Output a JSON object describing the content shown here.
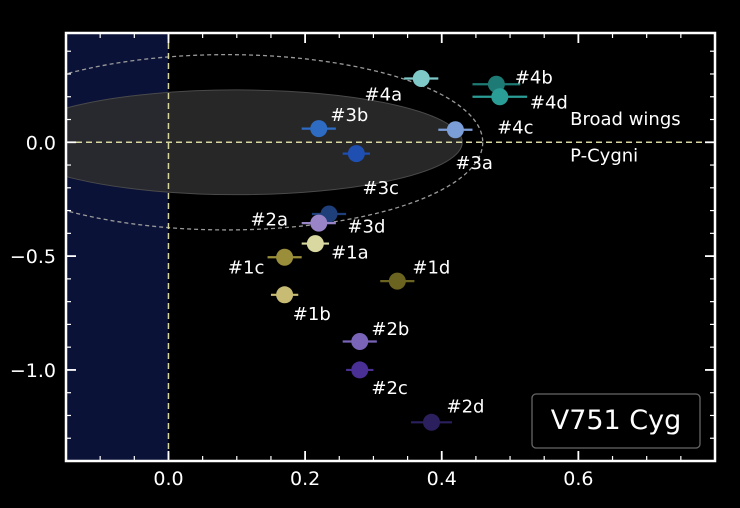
{
  "chart_data": {
    "type": "scatter",
    "title": "V751 Cyg",
    "xlabel": "",
    "ylabel": "",
    "xlim": [
      -0.15,
      0.8
    ],
    "ylim": [
      -1.4,
      0.48
    ],
    "xticks": [
      0.0,
      0.2,
      0.4,
      0.6
    ],
    "yticks": [
      0.0,
      -0.5,
      -1.0
    ],
    "xtick_labels": [
      "0.0",
      "0.2",
      "0.4",
      "0.6"
    ],
    "ytick_labels": [
      "0.0",
      "−0.5",
      "−1.0"
    ],
    "grid": false,
    "background": "#000000",
    "axes_color": "#ffffff",
    "reference_lines": {
      "x": 0.0,
      "y": 0.0,
      "color": "#d8d8a0",
      "style": "dashed"
    },
    "shaded_band": {
      "x_from": -0.15,
      "x_to": 0.0,
      "color": "#0b1238"
    },
    "ellipses": [
      {
        "kind": "filled",
        "cx": 0.1,
        "cy": 0.0,
        "rx": 0.33,
        "ry": 0.23,
        "color": "#2e2e2e"
      },
      {
        "kind": "dashed-outline",
        "cx": 0.085,
        "cy": 0.0,
        "rx": 0.375,
        "ry": 0.385,
        "color": "#9a9a9a"
      }
    ],
    "region_labels": [
      {
        "text": "Broad wings",
        "x": 0.588,
        "y": 0.075
      },
      {
        "text": "P-Cygni",
        "x": 0.588,
        "y": -0.085
      }
    ],
    "points": [
      {
        "label": "#4a",
        "x": 0.37,
        "y": 0.28,
        "xerr": 0.025,
        "color": "#7ec8c8",
        "label_dx": -0.083,
        "label_dy": -0.07
      },
      {
        "label": "#4b",
        "x": 0.48,
        "y": 0.255,
        "xerr": 0.035,
        "color": "#1e7a74",
        "label_dx": 0.027,
        "label_dy": 0.03
      },
      {
        "label": "#4d",
        "x": 0.485,
        "y": 0.2,
        "xerr": 0.04,
        "color": "#2a9e96",
        "label_dx": 0.044,
        "label_dy": -0.025
      },
      {
        "label": "#3b",
        "x": 0.22,
        "y": 0.06,
        "xerr": 0.025,
        "color": "#2e6cc4",
        "label_dx": 0.017,
        "label_dy": 0.06
      },
      {
        "label": "#4c",
        "x": 0.42,
        "y": 0.055,
        "xerr": 0.025,
        "color": "#7c9ed8",
        "label_dx": 0.061,
        "label_dy": 0.01
      },
      {
        "label": "#3c",
        "x": 0.275,
        "y": -0.05,
        "xerr": 0.02,
        "color": "#1f4fb0",
        "label_dx": 0.009,
        "label_dy": -0.15
      },
      {
        "label": "#3a",
        "x": 0.42,
        "y": 0.055,
        "xerr": 0.0,
        "color": "#7c9ed8",
        "label_dx": 0.0,
        "label_dy": -0.145,
        "label_only": true
      },
      {
        "label": "#3d",
        "x": 0.235,
        "y": -0.315,
        "xerr": 0.025,
        "color": "#1f3f7a",
        "label_dx": 0.027,
        "label_dy": -0.055
      },
      {
        "label": "#2a",
        "x": 0.22,
        "y": -0.355,
        "xerr": 0.025,
        "color": "#9a84c8",
        "label_dx": -0.1,
        "label_dy": 0.015
      },
      {
        "label": "#1a",
        "x": 0.215,
        "y": -0.445,
        "xerr": 0.02,
        "color": "#d8d8a0",
        "label_dx": 0.023,
        "label_dy": -0.04
      },
      {
        "label": "#1c",
        "x": 0.17,
        "y": -0.505,
        "xerr": 0.025,
        "color": "#9a8e3a",
        "label_dx": -0.083,
        "label_dy": -0.045
      },
      {
        "label": "#1d",
        "x": 0.335,
        "y": -0.61,
        "xerr": 0.025,
        "color": "#6a6420",
        "label_dx": 0.022,
        "label_dy": 0.06
      },
      {
        "label": "#1b",
        "x": 0.17,
        "y": -0.67,
        "xerr": 0.02,
        "color": "#c8bc74",
        "label_dx": 0.012,
        "label_dy": -0.085
      },
      {
        "label": "#2b",
        "x": 0.28,
        "y": -0.875,
        "xerr": 0.025,
        "color": "#7a64b8",
        "label_dx": 0.017,
        "label_dy": 0.055
      },
      {
        "label": "#2c",
        "x": 0.28,
        "y": -1.0,
        "xerr": 0.02,
        "color": "#4a2f94",
        "label_dx": 0.017,
        "label_dy": -0.08
      },
      {
        "label": "#2d",
        "x": 0.385,
        "y": -1.23,
        "xerr": 0.03,
        "color": "#2c1f5e",
        "label_dx": 0.022,
        "label_dy": 0.07
      }
    ]
  }
}
